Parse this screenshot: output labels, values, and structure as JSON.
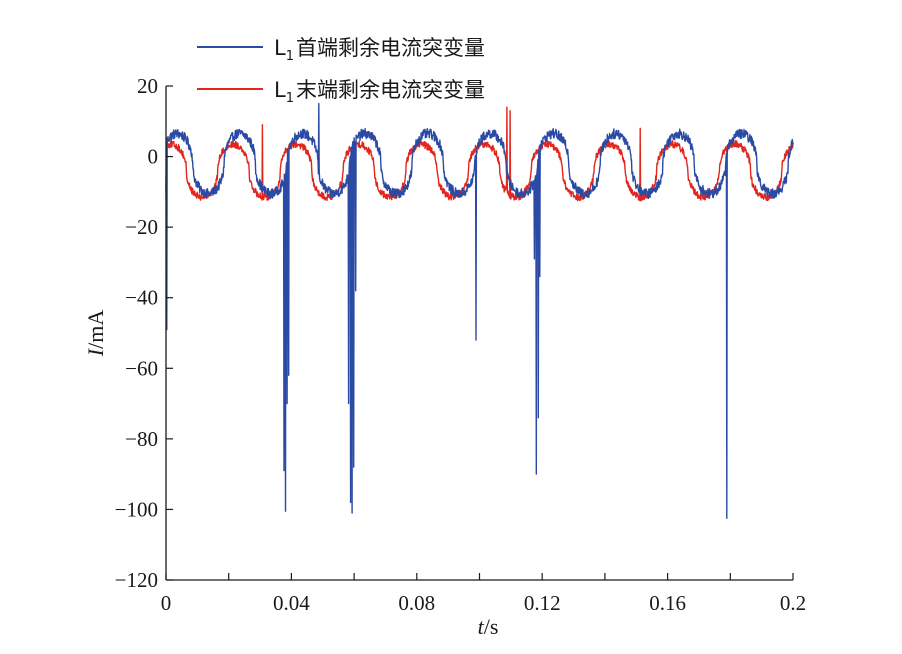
{
  "chart_data": {
    "type": "line",
    "xlabel_var": "t",
    "xlabel_unit": "/s",
    "ylabel_var": "I",
    "ylabel_unit": "/mA",
    "xlim": [
      0,
      0.2
    ],
    "ylim": [
      -120,
      20
    ],
    "x_ticks": [
      0,
      0.04,
      0.08,
      0.12,
      0.16,
      0.2
    ],
    "x_tick_labels": [
      "0",
      "0.04",
      "0.08",
      "0.12",
      "0.16",
      "0.2"
    ],
    "y_ticks": [
      20,
      0,
      -20,
      -40,
      -60,
      -80,
      -100,
      -120
    ],
    "y_tick_labels": [
      "20",
      "0",
      "−20",
      "−40",
      "−60",
      "−80",
      "−100",
      "−120"
    ],
    "grid": false,
    "legend_position": "top-left",
    "series": [
      {
        "name_prefix": "L",
        "name_sub": "1",
        "name_suffix": "首端剩余电流突变量",
        "color": "#2b4aa3",
        "baseline": {
          "period": 0.02,
          "phase": 0.0185,
          "offset": -2,
          "amplitude": 8.5,
          "noise": 1.4,
          "start": -10
        },
        "spikes": [
          {
            "x": 0.0003,
            "y": -49
          },
          {
            "x": 0.0376,
            "y": -89
          },
          {
            "x": 0.0381,
            "y": -100.5
          },
          {
            "x": 0.0386,
            "y": -70
          },
          {
            "x": 0.0391,
            "y": -62
          },
          {
            "x": 0.0487,
            "y": 15
          },
          {
            "x": 0.0583,
            "y": -70
          },
          {
            "x": 0.0589,
            "y": -98
          },
          {
            "x": 0.0594,
            "y": -101
          },
          {
            "x": 0.0599,
            "y": -88
          },
          {
            "x": 0.0605,
            "y": -38
          },
          {
            "x": 0.0989,
            "y": -52
          },
          {
            "x": 0.1175,
            "y": -29
          },
          {
            "x": 0.1181,
            "y": -90
          },
          {
            "x": 0.1187,
            "y": -74
          },
          {
            "x": 0.1192,
            "y": -34
          },
          {
            "x": 0.1789,
            "y": -102.5
          }
        ]
      },
      {
        "name_prefix": "L",
        "name_sub": "1",
        "name_suffix": "末端剩余电流突变量",
        "color": "#e3261d",
        "baseline": {
          "period": 0.02,
          "phase": 0.0165,
          "offset": -4,
          "amplitude": 7.5,
          "noise": 1.0,
          "start": -12
        },
        "spikes": [
          {
            "x": 0.0307,
            "y": 9
          },
          {
            "x": 0.1087,
            "y": 14
          },
          {
            "x": 0.1097,
            "y": 13
          },
          {
            "x": 0.1513,
            "y": 8
          }
        ]
      }
    ]
  }
}
